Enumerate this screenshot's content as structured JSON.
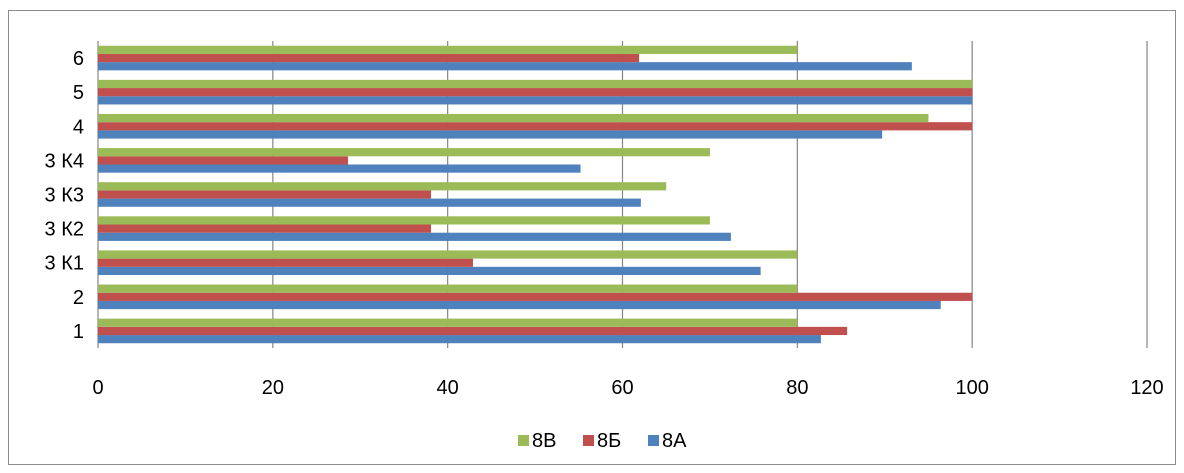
{
  "chart_data": {
    "type": "bar",
    "orientation": "horizontal",
    "categories": [
      "1",
      "2",
      "3 К1",
      "3 К2",
      "3 К3",
      "3 К4",
      "4",
      "5",
      "6"
    ],
    "series": [
      {
        "name": "8А",
        "color": "#4f81bd",
        "values": [
          82.7,
          96.4,
          75.8,
          72.4,
          62.1,
          55.2,
          89.7,
          100,
          93.1
        ]
      },
      {
        "name": "8Б",
        "color": "#c0504d",
        "values": [
          85.7,
          100,
          42.9,
          38.1,
          38.1,
          28.6,
          100,
          100,
          61.9
        ]
      },
      {
        "name": "8В",
        "color": "#9bbb59",
        "values": [
          80,
          80,
          80,
          70,
          65,
          70,
          95,
          100,
          80
        ]
      }
    ],
    "xlim": [
      0,
      120
    ],
    "xticks": [
      "0",
      "20",
      "40",
      "60",
      "80",
      "100",
      "120"
    ],
    "grid": "vertical major gridlines",
    "legend": {
      "position": "bottom",
      "order": [
        "8В",
        "8Б",
        "8А"
      ]
    }
  }
}
